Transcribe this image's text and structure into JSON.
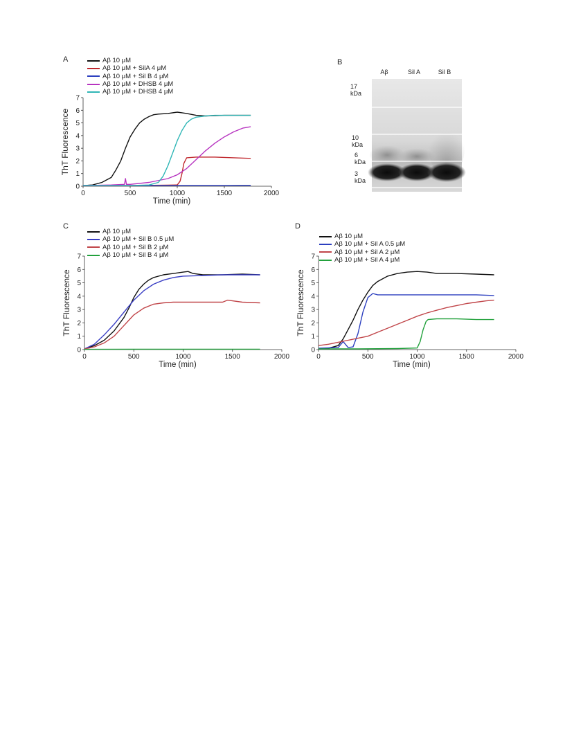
{
  "panels": {
    "A": {
      "label": "A",
      "chart_data": {
        "type": "line",
        "xlabel": "Time (min)",
        "ylabel": "ThT Fluorescence",
        "xlim": [
          0,
          2000
        ],
        "ylim": [
          0,
          7
        ],
        "xticks": [
          0,
          500,
          1000,
          1500,
          2000
        ],
        "yticks": [
          0,
          1,
          2,
          3,
          4,
          5,
          6,
          7
        ],
        "legend_position": "top-left",
        "series": [
          {
            "name": "Aβ 10 μM",
            "color": "#111111",
            "x": [
              0,
              100,
              200,
              300,
              350,
              400,
              450,
              500,
              550,
              600,
              650,
              700,
              750,
              800,
              900,
              1000,
              1050,
              1100,
              1200,
              1300,
              1500,
              1700,
              1780
            ],
            "y": [
              0.05,
              0.1,
              0.3,
              0.7,
              1.3,
              2.0,
              3.0,
              3.9,
              4.5,
              5.0,
              5.3,
              5.5,
              5.65,
              5.7,
              5.75,
              5.85,
              5.8,
              5.75,
              5.6,
              5.55,
              5.6,
              5.6,
              5.6
            ]
          },
          {
            "name": "Aβ 10 μM + SilA 4 μM",
            "color": "#c0282e",
            "x": [
              0,
              500,
              900,
              1000,
              1030,
              1050,
              1070,
              1100,
              1200,
              1400,
              1600,
              1780
            ],
            "y": [
              0.05,
              0.05,
              0.08,
              0.1,
              0.4,
              1.0,
              1.8,
              2.25,
              2.3,
              2.3,
              2.25,
              2.2
            ]
          },
          {
            "name": "Aβ 10 μM + Sil B 4 μM",
            "color": "#2c3fbf",
            "x": [
              0,
              500,
              1000,
              1500,
              1780
            ],
            "y": [
              0.05,
              0.05,
              0.06,
              0.06,
              0.07
            ]
          },
          {
            "name": "Aβ 10 μM + DHSB 4 μM",
            "color": "#b734c0",
            "x": [
              0,
              300,
              440,
              450,
              460,
              500,
              700,
              900,
              1000,
              1100,
              1200,
              1300,
              1400,
              1500,
              1600,
              1700,
              1780
            ],
            "y": [
              0.05,
              0.1,
              0.15,
              0.6,
              0.15,
              0.15,
              0.3,
              0.6,
              0.9,
              1.4,
              2.1,
              2.8,
              3.4,
              3.9,
              4.3,
              4.6,
              4.7
            ]
          },
          {
            "name": "Aβ 10 μM + DHSB 4 μM",
            "color": "#2fb6b6",
            "x": [
              0,
              500,
              700,
              800,
              850,
              900,
              950,
              1000,
              1050,
              1100,
              1150,
              1200,
              1300,
              1400,
              1500,
              1600,
              1780
            ],
            "y": [
              0.05,
              0.05,
              0.1,
              0.3,
              0.8,
              1.6,
              2.6,
              3.6,
              4.4,
              5.0,
              5.3,
              5.45,
              5.55,
              5.6,
              5.6,
              5.6,
              5.6
            ]
          }
        ]
      }
    },
    "B": {
      "label": "B",
      "lanes": [
        "Aβ",
        "Sil A",
        "Sil B"
      ],
      "markers": [
        "17 kDa",
        "10 kDa",
        "6 kDa",
        "3 kDa"
      ]
    },
    "C": {
      "label": "C",
      "chart_data": {
        "type": "line",
        "xlabel": "Time (min)",
        "ylabel": "ThT Fluorescence",
        "xlim": [
          0,
          2000
        ],
        "ylim": [
          0,
          7
        ],
        "xticks": [
          0,
          500,
          1000,
          1500,
          2000
        ],
        "yticks": [
          0,
          1,
          2,
          3,
          4,
          5,
          6,
          7
        ],
        "legend_position": "top-left",
        "series": [
          {
            "name": "Aβ 10 μM",
            "color": "#111111",
            "x": [
              0,
              100,
              200,
              300,
              400,
              450,
              500,
              550,
              600,
              650,
              700,
              800,
              900,
              1000,
              1050,
              1100,
              1200,
              1400,
              1600,
              1780
            ],
            "y": [
              0.05,
              0.3,
              0.7,
              1.4,
              2.4,
              3.1,
              3.9,
              4.5,
              4.9,
              5.2,
              5.4,
              5.6,
              5.7,
              5.8,
              5.85,
              5.7,
              5.6,
              5.6,
              5.65,
              5.6
            ]
          },
          {
            "name": "Aβ 10 μM + Sil B 0.5 μM",
            "color": "#3a3fc4",
            "x": [
              0,
              100,
              200,
              300,
              400,
              500,
              600,
              700,
              800,
              900,
              1000,
              1200,
              1400,
              1600,
              1780
            ],
            "y": [
              0.05,
              0.4,
              1.1,
              1.9,
              2.8,
              3.7,
              4.4,
              4.9,
              5.2,
              5.4,
              5.5,
              5.55,
              5.6,
              5.6,
              5.6
            ]
          },
          {
            "name": "Aβ 10 μM + Sil B 2 μM",
            "color": "#c04448",
            "x": [
              0,
              100,
              200,
              300,
              400,
              450,
              500,
              600,
              700,
              800,
              900,
              1000,
              1200,
              1400,
              1450,
              1600,
              1780
            ],
            "y": [
              0.05,
              0.2,
              0.5,
              1.0,
              1.8,
              2.2,
              2.6,
              3.1,
              3.4,
              3.5,
              3.55,
              3.55,
              3.55,
              3.55,
              3.7,
              3.55,
              3.5
            ]
          },
          {
            "name": "Aβ 10 μM + Sil B 4 μM",
            "color": "#22a13c",
            "x": [
              0,
              500,
              1000,
              1500,
              1780
            ],
            "y": [
              0.02,
              0.03,
              0.03,
              0.03,
              0.03
            ]
          }
        ]
      }
    },
    "D": {
      "label": "D",
      "chart_data": {
        "type": "line",
        "xlabel": "Time (min)",
        "ylabel": "ThT Fluorescence",
        "xlim": [
          0,
          2000
        ],
        "ylim": [
          0,
          7
        ],
        "xticks": [
          0,
          500,
          1000,
          1500,
          2000
        ],
        "yticks": [
          0,
          1,
          2,
          3,
          4,
          5,
          6,
          7
        ],
        "legend_position": "top-left",
        "series": [
          {
            "name": "Aβ 10 μM",
            "color": "#111111",
            "x": [
              0,
              100,
              200,
              250,
              300,
              350,
              400,
              450,
              500,
              550,
              600,
              700,
              800,
              900,
              1000,
              1100,
              1200,
              1400,
              1600,
              1780
            ],
            "y": [
              0.05,
              0.1,
              0.3,
              0.8,
              1.5,
              2.2,
              3.0,
              3.7,
              4.3,
              4.8,
              5.1,
              5.5,
              5.7,
              5.8,
              5.85,
              5.8,
              5.7,
              5.7,
              5.65,
              5.6
            ]
          },
          {
            "name": "Aβ 10 μM + Sil A 0.5 μM",
            "color": "#2c3fbf",
            "x": [
              0,
              200,
              250,
              300,
              350,
              400,
              450,
              500,
              550,
              600,
              800,
              1000,
              1200,
              1400,
              1600,
              1780
            ],
            "y": [
              0.1,
              0.15,
              0.6,
              0.15,
              0.2,
              1.2,
              2.8,
              3.9,
              4.2,
              4.1,
              4.1,
              4.1,
              4.1,
              4.1,
              4.1,
              4.05
            ]
          },
          {
            "name": "Aβ 10 μM + Sil A 2 μM",
            "color": "#c04448",
            "x": [
              0,
              100,
              200,
              300,
              400,
              500,
              600,
              700,
              800,
              900,
              1000,
              1100,
              1200,
              1300,
              1400,
              1500,
              1600,
              1700,
              1780
            ],
            "y": [
              0.3,
              0.4,
              0.55,
              0.7,
              0.85,
              1.0,
              1.3,
              1.6,
              1.9,
              2.2,
              2.5,
              2.75,
              2.95,
              3.15,
              3.3,
              3.45,
              3.55,
              3.65,
              3.7
            ]
          },
          {
            "name": "Aβ 10 μM + Sil A 4 μM",
            "color": "#22a13c",
            "x": [
              0,
              400,
              800,
              1000,
              1030,
              1060,
              1090,
              1110,
              1200,
              1400,
              1600,
              1780
            ],
            "y": [
              0.05,
              0.05,
              0.08,
              0.12,
              0.6,
              1.5,
              2.1,
              2.25,
              2.3,
              2.3,
              2.25,
              2.25
            ]
          }
        ]
      }
    }
  }
}
